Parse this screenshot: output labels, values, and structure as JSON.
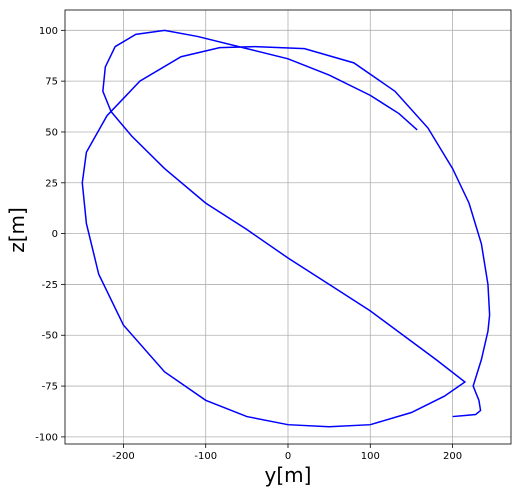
{
  "chart_data": {
    "type": "line",
    "x_label": "y[m]",
    "y_label": "z[m]",
    "series": [
      {
        "color": "#0000ff",
        "x": [
          200,
          215,
          228,
          234,
          232,
          225,
          235,
          243,
          245,
          243,
          235,
          220,
          200,
          170,
          130,
          80,
          20,
          -40,
          -83,
          -130,
          -180,
          -220,
          -245,
          -250,
          -245,
          -230,
          -200,
          -150,
          -100,
          -50,
          0,
          50,
          100,
          150,
          190,
          215,
          180,
          140,
          100,
          50,
          0,
          -50,
          -100,
          -150,
          -190,
          -215,
          -225,
          -222,
          -210,
          -185,
          -150,
          -110,
          -50,
          0,
          50,
          100,
          135,
          157
        ],
        "values": [
          -90,
          -89.5,
          -89,
          -87,
          -82,
          -75,
          -62,
          -48,
          -40,
          -25,
          -5,
          15,
          32,
          52,
          70,
          84,
          91,
          92,
          91.5,
          87,
          75,
          58,
          40,
          25,
          5,
          -20,
          -45,
          -68,
          -82,
          -90,
          -94,
          -95,
          -94,
          -88,
          -80,
          -73,
          -62,
          -50,
          -38,
          -25,
          -12,
          2,
          15,
          32,
          48,
          60,
          70,
          82,
          92,
          98,
          100,
          97,
          91,
          86,
          78,
          68,
          59,
          51
        ]
      }
    ],
    "xlim": [
      -271,
      271
    ],
    "ylim": [
      -103.5,
      110
    ],
    "xticks": [
      -200,
      -100,
      0,
      100,
      200
    ],
    "yticks": [
      -100,
      -75,
      -50,
      -25,
      0,
      25,
      50,
      75,
      100
    ],
    "grid": true
  }
}
